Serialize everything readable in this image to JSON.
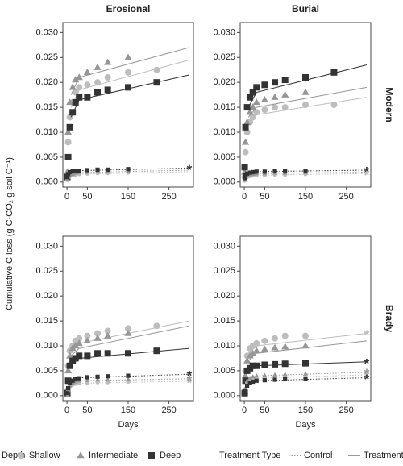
{
  "chart_data": [
    {
      "type": "scatter",
      "title": "Erosional",
      "xlim": [
        -10,
        310
      ],
      "xticks": [
        0,
        50,
        150,
        250
      ],
      "ylim": [
        -0.001,
        0.032
      ],
      "yticks": [
        {
          "value": 0,
          "label": "0.000"
        },
        {
          "value": 0.005,
          "label": "0.005"
        },
        {
          "value": 0.01,
          "label": "0.010"
        },
        {
          "value": 0.015,
          "label": "0.015"
        },
        {
          "value": 0.02,
          "label": "0.020"
        },
        {
          "value": 0.025,
          "label": "0.025"
        },
        {
          "value": 0.03,
          "label": "0.030"
        }
      ],
      "fit_x": [
        10,
        30,
        300
      ],
      "series": [
        {
          "name": "Shallow",
          "treatment": "Treatment",
          "x": [
            1,
            3,
            7,
            14,
            21,
            30,
            50,
            75,
            100,
            150,
            220
          ],
          "values": [
            0.001,
            0.008,
            0.013,
            0.016,
            0.018,
            0.019,
            0.0195,
            0.02,
            0.021,
            0.022,
            0.0225
          ],
          "fit": [
            0.015,
            0.0185,
            0.0245
          ]
        },
        {
          "name": "Intermediate",
          "treatment": "Treatment",
          "x": [
            1,
            3,
            7,
            14,
            21,
            30,
            50,
            75,
            100,
            150
          ],
          "values": [
            0.002,
            0.01,
            0.016,
            0.019,
            0.0205,
            0.021,
            0.022,
            0.023,
            0.024,
            0.025
          ],
          "fit": [
            0.0175,
            0.021,
            0.027
          ]
        },
        {
          "name": "Deep",
          "treatment": "Treatment",
          "x": [
            1,
            3,
            7,
            14,
            21,
            30,
            50,
            75,
            100,
            150,
            220
          ],
          "values": [
            0.001,
            0.005,
            0.011,
            0.014,
            0.016,
            0.017,
            0.017,
            0.018,
            0.0185,
            0.019,
            0.02
          ],
          "fit": [
            0.013,
            0.0165,
            0.0215
          ]
        },
        {
          "name": "Shallow",
          "treatment": "Control",
          "x": [
            1,
            3,
            7,
            14,
            21,
            30,
            50,
            75,
            100,
            150
          ],
          "values": [
            0.0004,
            0.0009,
            0.0012,
            0.0014,
            0.0015,
            0.0016,
            0.0017,
            0.0018,
            0.0018,
            0.0019
          ],
          "fit": [
            0.0014,
            0.0016,
            0.0021
          ]
        },
        {
          "name": "Intermediate",
          "treatment": "Control",
          "x": [
            1,
            3,
            7,
            14,
            21,
            30,
            50,
            75,
            100,
            150
          ],
          "values": [
            0.0005,
            0.001,
            0.0014,
            0.0016,
            0.0018,
            0.0019,
            0.002,
            0.0021,
            0.0021,
            0.0022
          ],
          "fit": [
            0.0016,
            0.0019,
            0.0024
          ]
        },
        {
          "name": "Deep",
          "treatment": "Control",
          "x": [
            1,
            3,
            7,
            14,
            21,
            30,
            50,
            75,
            100,
            150
          ],
          "values": [
            0.001,
            0.0016,
            0.002,
            0.0022,
            0.0023,
            0.0023,
            0.0024,
            0.0025,
            0.0025,
            0.0026
          ],
          "fit": [
            0.0021,
            0.0023,
            0.0028
          ],
          "asterisk": true
        }
      ]
    },
    {
      "type": "scatter",
      "title": "Burial",
      "row_label": "Modern",
      "xlim": [
        -10,
        310
      ],
      "xticks": [
        0,
        50,
        150,
        250
      ],
      "ylim": [
        -0.001,
        0.032
      ],
      "yticks": [
        {
          "value": 0,
          "label": "0.000"
        },
        {
          "value": 0.005,
          "label": "0.005"
        },
        {
          "value": 0.01,
          "label": "0.010"
        },
        {
          "value": 0.015,
          "label": "0.015"
        },
        {
          "value": 0.02,
          "label": "0.020"
        },
        {
          "value": 0.025,
          "label": "0.025"
        },
        {
          "value": 0.03,
          "label": "0.030"
        }
      ],
      "fit_x": [
        10,
        30,
        300
      ],
      "series": [
        {
          "name": "Shallow",
          "treatment": "Treatment",
          "x": [
            1,
            3,
            7,
            14,
            21,
            30,
            50,
            75,
            100,
            150,
            220
          ],
          "values": [
            0.001,
            0.006,
            0.01,
            0.012,
            0.013,
            0.014,
            0.0145,
            0.015,
            0.015,
            0.0155,
            0.0155
          ],
          "fit": [
            0.012,
            0.0135,
            0.017
          ]
        },
        {
          "name": "Intermediate",
          "treatment": "Treatment",
          "x": [
            1,
            3,
            7,
            14,
            21,
            30,
            50,
            75,
            100,
            150
          ],
          "values": [
            0.002,
            0.008,
            0.012,
            0.014,
            0.015,
            0.016,
            0.0165,
            0.017,
            0.0175,
            0.018
          ],
          "fit": [
            0.013,
            0.015,
            0.019
          ]
        },
        {
          "name": "Deep",
          "treatment": "Treatment",
          "x": [
            1,
            3,
            7,
            14,
            21,
            30,
            50,
            75,
            100,
            150,
            220
          ],
          "values": [
            0.003,
            0.011,
            0.015,
            0.017,
            0.018,
            0.019,
            0.0195,
            0.02,
            0.0205,
            0.021,
            0.022
          ],
          "fit": [
            0.015,
            0.018,
            0.0235
          ]
        },
        {
          "name": "Shallow",
          "treatment": "Control",
          "x": [
            1,
            3,
            7,
            14,
            21,
            30,
            50,
            75,
            100,
            150
          ],
          "values": [
            0.0003,
            0.0008,
            0.001,
            0.0012,
            0.0013,
            0.0014,
            0.0014,
            0.0015,
            0.0015,
            0.0016
          ],
          "fit": [
            0.0012,
            0.0014,
            0.0017
          ],
          "asterisk": true
        },
        {
          "name": "Intermediate",
          "treatment": "Control",
          "x": [
            1,
            3,
            7,
            14,
            21,
            30,
            50,
            75,
            100,
            150
          ],
          "values": [
            0.0004,
            0.001,
            0.0013,
            0.0015,
            0.0016,
            0.0017,
            0.0017,
            0.0018,
            0.0018,
            0.0019
          ],
          "fit": [
            0.0015,
            0.0017,
            0.002
          ]
        },
        {
          "name": "Deep",
          "treatment": "Control",
          "x": [
            1,
            3,
            7,
            14,
            21,
            30,
            50,
            75,
            100,
            150
          ],
          "values": [
            0.0008,
            0.0014,
            0.0017,
            0.0019,
            0.002,
            0.0021,
            0.0021,
            0.0022,
            0.0022,
            0.0023
          ],
          "fit": [
            0.0019,
            0.0021,
            0.0024
          ],
          "asterisk": true
        }
      ]
    },
    {
      "type": "scatter",
      "xlim": [
        -10,
        310
      ],
      "xticks": [
        0,
        50,
        150,
        250
      ],
      "ylim": [
        -0.001,
        0.032
      ],
      "yticks": [
        {
          "value": 0,
          "label": "0.000"
        },
        {
          "value": 0.005,
          "label": "0.005"
        },
        {
          "value": 0.01,
          "label": "0.010"
        },
        {
          "value": 0.015,
          "label": "0.015"
        },
        {
          "value": 0.02,
          "label": "0.020"
        },
        {
          "value": 0.025,
          "label": "0.025"
        },
        {
          "value": 0.03,
          "label": "0.030"
        }
      ],
      "fit_x": [
        10,
        30,
        300
      ],
      "series": [
        {
          "name": "Shallow",
          "treatment": "Treatment",
          "x": [
            1,
            3,
            7,
            14,
            21,
            30,
            50,
            75,
            100,
            150,
            220
          ],
          "values": [
            0.001,
            0.006,
            0.009,
            0.01,
            0.011,
            0.0115,
            0.012,
            0.0125,
            0.013,
            0.0135,
            0.014
          ],
          "fit": [
            0.009,
            0.0105,
            0.015
          ]
        },
        {
          "name": "Intermediate",
          "treatment": "Treatment",
          "x": [
            1,
            3,
            7,
            14,
            21,
            30,
            50,
            75,
            100,
            150
          ],
          "values": [
            0.001,
            0.005,
            0.008,
            0.0095,
            0.01,
            0.0105,
            0.011,
            0.0115,
            0.012,
            0.0125
          ],
          "fit": [
            0.008,
            0.0095,
            0.014
          ]
        },
        {
          "name": "Deep",
          "treatment": "Treatment",
          "x": [
            1,
            3,
            7,
            14,
            21,
            30,
            50,
            75,
            100,
            150,
            220
          ],
          "values": [
            0.0005,
            0.003,
            0.006,
            0.007,
            0.0075,
            0.008,
            0.008,
            0.0085,
            0.0085,
            0.0085,
            0.009
          ],
          "fit": [
            0.0065,
            0.0075,
            0.0095
          ]
        },
        {
          "name": "Shallow",
          "treatment": "Control",
          "x": [
            1,
            3,
            7,
            14,
            21,
            30,
            50,
            75,
            100,
            150
          ],
          "values": [
            0.0003,
            0.001,
            0.0018,
            0.0022,
            0.0024,
            0.0025,
            0.0026,
            0.0027,
            0.0027,
            0.0028
          ],
          "fit": [
            0.0022,
            0.0025,
            0.0029
          ],
          "asterisk": true
        },
        {
          "name": "Intermediate",
          "treatment": "Control",
          "x": [
            1,
            3,
            7,
            14,
            21,
            30,
            50,
            75,
            100,
            150
          ],
          "values": [
            0.0004,
            0.0012,
            0.002,
            0.0025,
            0.0028,
            0.003,
            0.0031,
            0.0032,
            0.0032,
            0.0033
          ],
          "fit": [
            0.0026,
            0.003,
            0.0034
          ],
          "asterisk": true
        },
        {
          "name": "Deep",
          "treatment": "Control",
          "x": [
            1,
            3,
            7,
            14,
            21,
            30,
            50,
            75,
            100,
            150
          ],
          "values": [
            0.0005,
            0.0015,
            0.0025,
            0.003,
            0.0033,
            0.0035,
            0.0037,
            0.0038,
            0.0039,
            0.004
          ],
          "fit": [
            0.0031,
            0.0036,
            0.0043
          ],
          "asterisk": true
        }
      ]
    },
    {
      "type": "scatter",
      "row_label": "Brady",
      "xlim": [
        -10,
        310
      ],
      "xticks": [
        0,
        50,
        150,
        250
      ],
      "ylim": [
        -0.001,
        0.032
      ],
      "yticks": [
        {
          "value": 0,
          "label": "0.000"
        },
        {
          "value": 0.005,
          "label": "0.005"
        },
        {
          "value": 0.01,
          "label": "0.010"
        },
        {
          "value": 0.015,
          "label": "0.015"
        },
        {
          "value": 0.02,
          "label": "0.020"
        },
        {
          "value": 0.025,
          "label": "0.025"
        },
        {
          "value": 0.03,
          "label": "0.030"
        }
      ],
      "fit_x": [
        10,
        30,
        300
      ],
      "series": [
        {
          "name": "Shallow",
          "treatment": "Treatment",
          "x": [
            1,
            3,
            7,
            14,
            21,
            30,
            50,
            75,
            100,
            150
          ],
          "values": [
            0.001,
            0.005,
            0.008,
            0.0095,
            0.01,
            0.0105,
            0.011,
            0.0115,
            0.012,
            0.012
          ],
          "fit": [
            0.0085,
            0.01,
            0.0125
          ],
          "asterisk": true
        },
        {
          "name": "Intermediate",
          "treatment": "Treatment",
          "x": [
            1,
            3,
            7,
            14,
            21,
            30,
            50,
            75,
            100,
            150
          ],
          "values": [
            0.0008,
            0.004,
            0.007,
            0.008,
            0.0085,
            0.009,
            0.0093,
            0.0096,
            0.0098,
            0.01
          ],
          "fit": [
            0.007,
            0.0085,
            0.011
          ]
        },
        {
          "name": "Deep",
          "treatment": "Treatment",
          "x": [
            1,
            3,
            7,
            14,
            21,
            30,
            50,
            75,
            100,
            150
          ],
          "values": [
            0.0005,
            0.003,
            0.005,
            0.0055,
            0.006,
            0.006,
            0.0062,
            0.0063,
            0.0064,
            0.0065
          ],
          "fit": [
            0.005,
            0.006,
            0.0068
          ],
          "asterisk": true
        },
        {
          "name": "Shallow",
          "treatment": "Control",
          "x": [
            1,
            3,
            7,
            14,
            21,
            30,
            50,
            75,
            100,
            150
          ],
          "values": [
            0.0003,
            0.0012,
            0.0025,
            0.003,
            0.0033,
            0.0035,
            0.0036,
            0.0037,
            0.0038,
            0.0039
          ],
          "fit": [
            0.003,
            0.0035,
            0.0042
          ],
          "asterisk": true
        },
        {
          "name": "Intermediate",
          "treatment": "Control",
          "x": [
            1,
            3,
            7,
            14,
            21,
            30,
            50,
            75,
            100,
            150
          ],
          "values": [
            0.0004,
            0.0015,
            0.003,
            0.0035,
            0.0038,
            0.004,
            0.0041,
            0.0042,
            0.0043,
            0.0044
          ],
          "fit": [
            0.0035,
            0.004,
            0.0047
          ],
          "asterisk": true
        },
        {
          "name": "Deep",
          "treatment": "Control",
          "x": [
            1,
            3,
            7,
            14,
            21,
            30,
            50,
            75,
            100,
            150
          ],
          "values": [
            0.0003,
            0.001,
            0.002,
            0.0025,
            0.0028,
            0.003,
            0.0031,
            0.0032,
            0.0033,
            0.0034
          ],
          "fit": [
            0.0026,
            0.003,
            0.0036
          ],
          "asterisk": true
        }
      ]
    }
  ],
  "xlabel": "Days",
  "ylabel": "Cumulative C loss (g C-CO₂ g soil C⁻¹)",
  "legend": {
    "depth_title": "Depth",
    "depth_items": [
      {
        "name": "Shallow",
        "color": "#bdbdbd",
        "marker": "circle"
      },
      {
        "name": "Intermediate",
        "color": "#969696",
        "marker": "triangle"
      },
      {
        "name": "Deep",
        "color": "#333333",
        "marker": "square"
      }
    ],
    "treatment_title": "Treatment Type",
    "treatment_items": [
      {
        "name": "Control",
        "dash": "dotted"
      },
      {
        "name": "Treatment",
        "dash": "solid"
      }
    ]
  }
}
